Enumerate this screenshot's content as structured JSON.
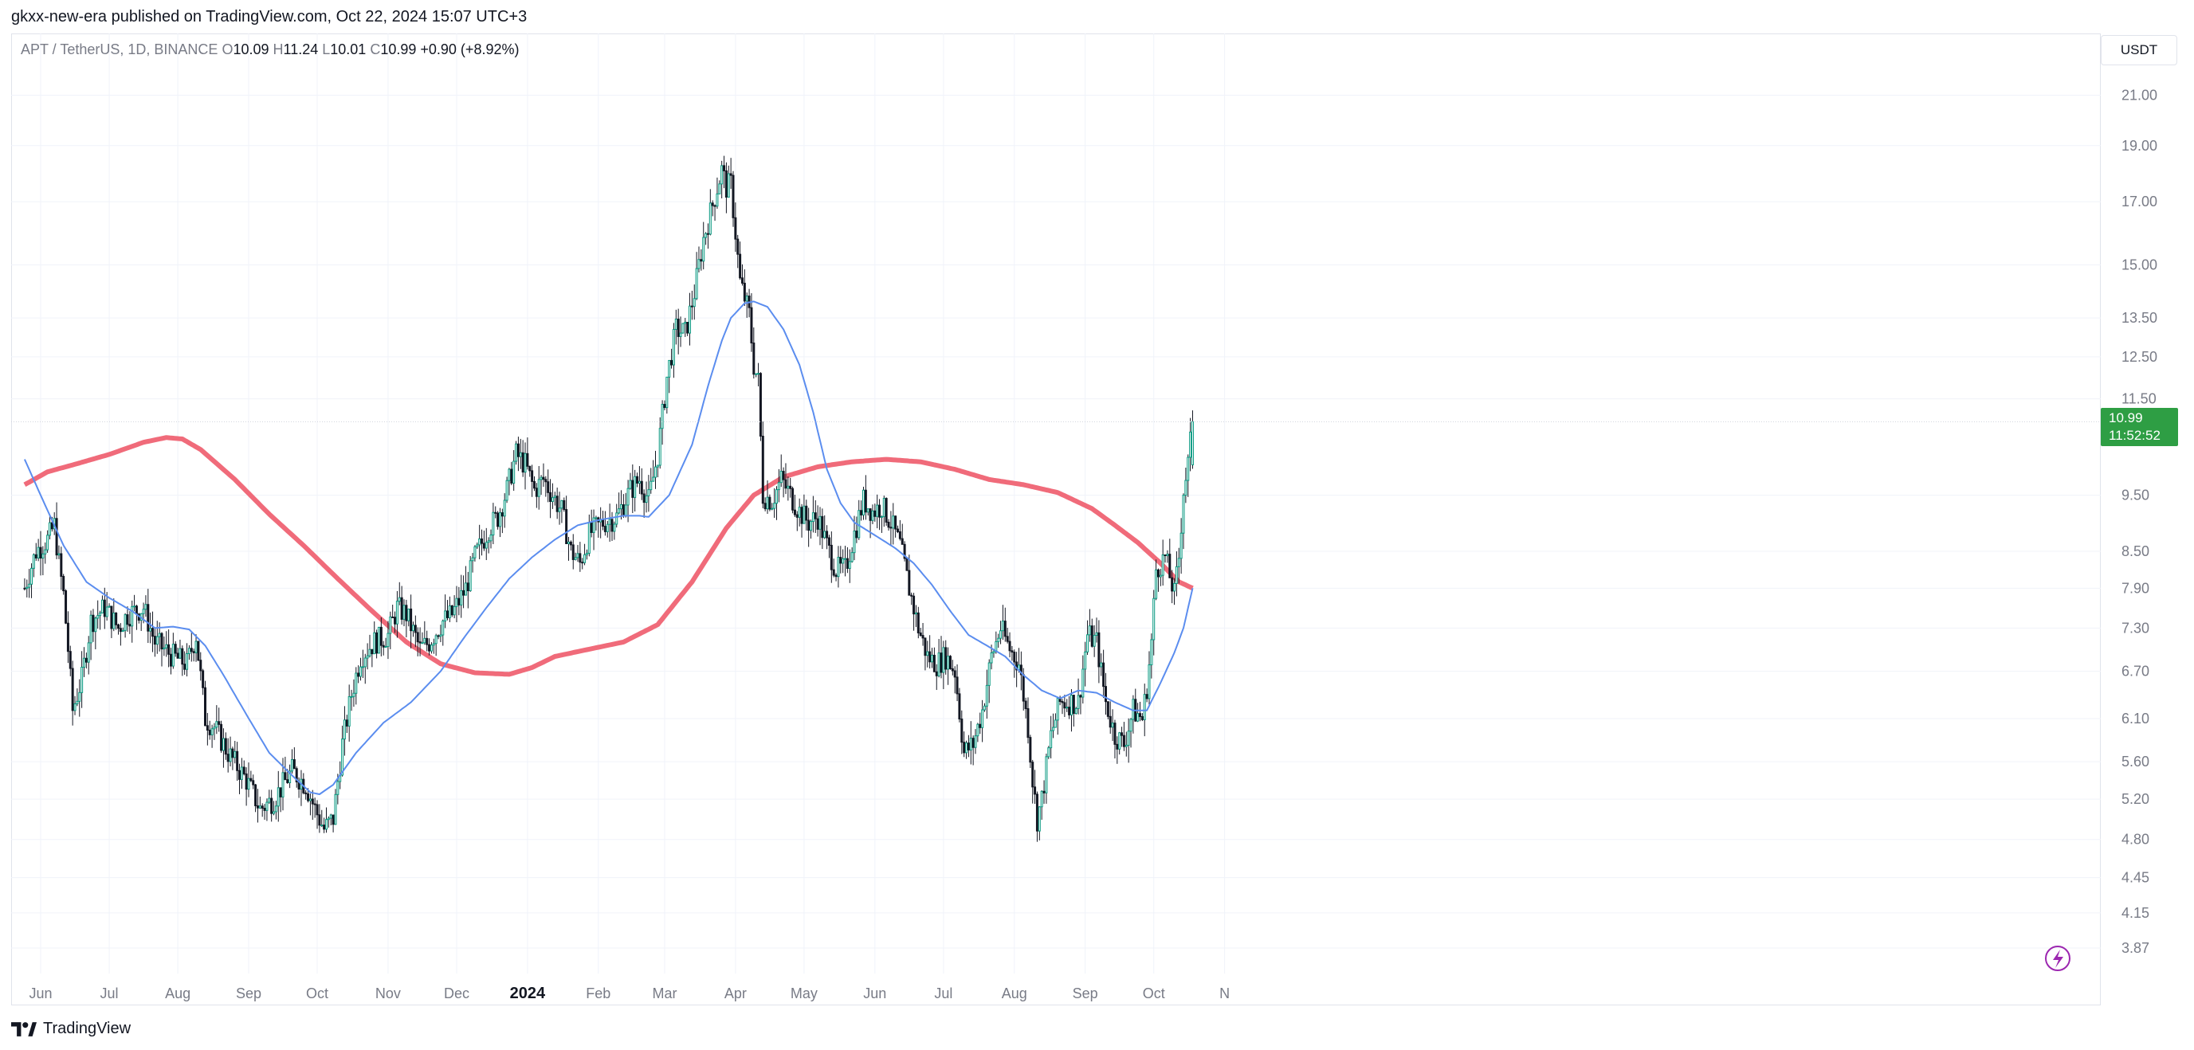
{
  "header": {
    "publisher_line": "gkxx-new-era published on TradingView.com, Oct 22, 2024 15:07 UTC+3"
  },
  "legend": {
    "symbol": "APT / TetherUS, 1D, BINANCE",
    "o_label": "O",
    "o_value": "10.09",
    "h_label": "H",
    "h_value": "11.24",
    "l_label": "L",
    "l_value": "10.01",
    "c_label": "C",
    "c_value": "10.99",
    "change": "+0.90 (+8.92%)"
  },
  "price_scale": {
    "currency": "USDT"
  },
  "last_price": {
    "price": "10.99",
    "countdown": "11:52:52"
  },
  "footer": {
    "brand": "TradingView"
  },
  "colors": {
    "up": "#089981",
    "down": "#131722",
    "candle": "#131722",
    "ma_long": "#f06b7a",
    "ma_short": "#5b8def",
    "price_tag": "#2e9e44"
  },
  "icons": {
    "footer_logo": "tradingview-logo-icon",
    "bolt": "lightning-bolt-icon"
  },
  "chart_data": {
    "type": "candlestick",
    "scale": "log",
    "grid": true,
    "ylim": [
      3.75,
      22.0
    ],
    "y_ticks": [
      "21.00",
      "19.00",
      "17.00",
      "15.00",
      "13.50",
      "12.50",
      "11.50",
      "9.50",
      "8.50",
      "7.90",
      "7.30",
      "6.70",
      "6.10",
      "5.60",
      "5.20",
      "4.80",
      "4.45",
      "4.15",
      "3.87"
    ],
    "x_ticks": [
      "Jun",
      "Jul",
      "Aug",
      "Sep",
      "Oct",
      "Nov",
      "Dec",
      "2024",
      "Feb",
      "Mar",
      "Apr",
      "May",
      "Jun",
      "Jul",
      "Aug",
      "Sep",
      "Oct",
      "N"
    ],
    "x_tick_index": [
      0,
      30,
      60,
      91,
      121,
      152,
      182,
      213,
      244,
      273,
      304,
      334,
      365,
      395,
      426,
      457,
      487,
      518
    ],
    "start_offset": -7,
    "last_index": 504,
    "price_anchors": [
      [
        -7,
        7.9
      ],
      [
        -2,
        8.5
      ],
      [
        3,
        8.7
      ],
      [
        6,
        8.95
      ],
      [
        8,
        8.3
      ],
      [
        10,
        7.8
      ],
      [
        12,
        7.0
      ],
      [
        14,
        6.2
      ],
      [
        18,
        6.6
      ],
      [
        22,
        7.4
      ],
      [
        28,
        7.6
      ],
      [
        34,
        7.3
      ],
      [
        38,
        7.5
      ],
      [
        45,
        7.6
      ],
      [
        50,
        7.1
      ],
      [
        58,
        6.9
      ],
      [
        64,
        6.8
      ],
      [
        68,
        7.2
      ],
      [
        72,
        6.1
      ],
      [
        76,
        6.0
      ],
      [
        82,
        5.7
      ],
      [
        90,
        5.4
      ],
      [
        96,
        5.1
      ],
      [
        102,
        5.2
      ],
      [
        110,
        5.5
      ],
      [
        116,
        5.35
      ],
      [
        120,
        5.1
      ],
      [
        124,
        4.9
      ],
      [
        128,
        5.0
      ],
      [
        132,
        5.8
      ],
      [
        136,
        6.4
      ],
      [
        140,
        6.9
      ],
      [
        146,
        7.1
      ],
      [
        152,
        7.2
      ],
      [
        156,
        7.6
      ],
      [
        160,
        7.5
      ],
      [
        166,
        7.0
      ],
      [
        170,
        7.1
      ],
      [
        176,
        7.4
      ],
      [
        180,
        7.5
      ],
      [
        186,
        7.9
      ],
      [
        190,
        8.4
      ],
      [
        196,
        8.9
      ],
      [
        200,
        9.1
      ],
      [
        204,
        9.6
      ],
      [
        208,
        10.3
      ],
      [
        212,
        10.1
      ],
      [
        216,
        9.6
      ],
      [
        220,
        9.8
      ],
      [
        224,
        9.5
      ],
      [
        228,
        9.2
      ],
      [
        232,
        8.5
      ],
      [
        236,
        8.3
      ],
      [
        240,
        8.8
      ],
      [
        246,
        9.0
      ],
      [
        252,
        9.1
      ],
      [
        258,
        9.6
      ],
      [
        262,
        9.8
      ],
      [
        266,
        9.4
      ],
      [
        270,
        10.3
      ],
      [
        274,
        12.0
      ],
      [
        278,
        13.2
      ],
      [
        282,
        13.1
      ],
      [
        286,
        14.2
      ],
      [
        290,
        15.8
      ],
      [
        294,
        16.9
      ],
      [
        298,
        18.1
      ],
      [
        300,
        17.5
      ],
      [
        302,
        17.6
      ],
      [
        306,
        14.5
      ],
      [
        310,
        13.6
      ],
      [
        312,
        12.3
      ],
      [
        314,
        11.9
      ],
      [
        316,
        9.5
      ],
      [
        320,
        9.4
      ],
      [
        324,
        9.8
      ],
      [
        328,
        9.5
      ],
      [
        332,
        9.2
      ],
      [
        336,
        9.0
      ],
      [
        340,
        9.1
      ],
      [
        344,
        8.6
      ],
      [
        348,
        8.2
      ],
      [
        352,
        8.2
      ],
      [
        356,
        8.8
      ],
      [
        360,
        9.4
      ],
      [
        364,
        9.2
      ],
      [
        368,
        9.3
      ],
      [
        372,
        9.0
      ],
      [
        376,
        8.6
      ],
      [
        380,
        7.9
      ],
      [
        384,
        7.3
      ],
      [
        388,
        6.9
      ],
      [
        392,
        6.8
      ],
      [
        396,
        6.9
      ],
      [
        400,
        6.7
      ],
      [
        404,
        5.7
      ],
      [
        408,
        5.8
      ],
      [
        412,
        6.2
      ],
      [
        416,
        6.9
      ],
      [
        420,
        7.3
      ],
      [
        424,
        7.0
      ],
      [
        428,
        6.8
      ],
      [
        432,
        6.0
      ],
      [
        434,
        5.4
      ],
      [
        436,
        5.0
      ],
      [
        438,
        5.2
      ],
      [
        442,
        5.9
      ],
      [
        446,
        6.3
      ],
      [
        450,
        6.3
      ],
      [
        454,
        6.3
      ],
      [
        458,
        7.2
      ],
      [
        462,
        7.1
      ],
      [
        466,
        6.3
      ],
      [
        470,
        5.9
      ],
      [
        474,
        5.8
      ],
      [
        478,
        6.2
      ],
      [
        482,
        6.1
      ],
      [
        484,
        6.5
      ],
      [
        486,
        7.1
      ],
      [
        488,
        8.2
      ],
      [
        492,
        8.4
      ],
      [
        496,
        7.8
      ],
      [
        498,
        8.4
      ],
      [
        500,
        9.6
      ],
      [
        502,
        10.1
      ],
      [
        504,
        10.99
      ]
    ],
    "ma_long": [
      [
        -7,
        9.7
      ],
      [
        3,
        9.95
      ],
      [
        15,
        10.1
      ],
      [
        30,
        10.3
      ],
      [
        45,
        10.55
      ],
      [
        55,
        10.65
      ],
      [
        62,
        10.62
      ],
      [
        70,
        10.4
      ],
      [
        85,
        9.8
      ],
      [
        100,
        9.15
      ],
      [
        115,
        8.6
      ],
      [
        130,
        8.05
      ],
      [
        145,
        7.55
      ],
      [
        160,
        7.1
      ],
      [
        175,
        6.8
      ],
      [
        190,
        6.68
      ],
      [
        205,
        6.66
      ],
      [
        215,
        6.75
      ],
      [
        225,
        6.9
      ],
      [
        240,
        7.0
      ],
      [
        255,
        7.1
      ],
      [
        270,
        7.35
      ],
      [
        285,
        8.0
      ],
      [
        300,
        8.9
      ],
      [
        312,
        9.5
      ],
      [
        325,
        9.85
      ],
      [
        340,
        10.05
      ],
      [
        355,
        10.15
      ],
      [
        370,
        10.2
      ],
      [
        385,
        10.15
      ],
      [
        400,
        10.0
      ],
      [
        415,
        9.8
      ],
      [
        430,
        9.7
      ],
      [
        445,
        9.55
      ],
      [
        460,
        9.25
      ],
      [
        470,
        8.95
      ],
      [
        480,
        8.65
      ],
      [
        490,
        8.3
      ],
      [
        498,
        8.0
      ],
      [
        504,
        7.9
      ]
    ],
    "ma_short": [
      [
        -7,
        10.2
      ],
      [
        0,
        9.5
      ],
      [
        10,
        8.6
      ],
      [
        20,
        8.0
      ],
      [
        30,
        7.75
      ],
      [
        40,
        7.55
      ],
      [
        50,
        7.3
      ],
      [
        58,
        7.32
      ],
      [
        65,
        7.28
      ],
      [
        72,
        7.05
      ],
      [
        80,
        6.65
      ],
      [
        90,
        6.15
      ],
      [
        100,
        5.7
      ],
      [
        110,
        5.45
      ],
      [
        118,
        5.27
      ],
      [
        122,
        5.25
      ],
      [
        128,
        5.35
      ],
      [
        138,
        5.7
      ],
      [
        150,
        6.05
      ],
      [
        162,
        6.3
      ],
      [
        175,
        6.7
      ],
      [
        185,
        7.15
      ],
      [
        195,
        7.6
      ],
      [
        205,
        8.05
      ],
      [
        215,
        8.4
      ],
      [
        225,
        8.7
      ],
      [
        235,
        8.95
      ],
      [
        245,
        9.05
      ],
      [
        255,
        9.12
      ],
      [
        262,
        9.12
      ],
      [
        266,
        9.1
      ],
      [
        275,
        9.5
      ],
      [
        285,
        10.5
      ],
      [
        292,
        11.8
      ],
      [
        298,
        12.9
      ],
      [
        302,
        13.5
      ],
      [
        308,
        13.9
      ],
      [
        312,
        13.95
      ],
      [
        318,
        13.8
      ],
      [
        325,
        13.2
      ],
      [
        332,
        12.3
      ],
      [
        338,
        11.2
      ],
      [
        344,
        10.0
      ],
      [
        350,
        9.35
      ],
      [
        356,
        9.0
      ],
      [
        362,
        8.85
      ],
      [
        368,
        8.7
      ],
      [
        374,
        8.55
      ],
      [
        382,
        8.3
      ],
      [
        390,
        7.95
      ],
      [
        398,
        7.55
      ],
      [
        406,
        7.2
      ],
      [
        414,
        7.05
      ],
      [
        422,
        6.9
      ],
      [
        430,
        6.65
      ],
      [
        438,
        6.45
      ],
      [
        446,
        6.35
      ],
      [
        454,
        6.45
      ],
      [
        462,
        6.42
      ],
      [
        470,
        6.3
      ],
      [
        478,
        6.2
      ],
      [
        484,
        6.2
      ],
      [
        490,
        6.55
      ],
      [
        496,
        6.95
      ],
      [
        500,
        7.3
      ],
      [
        504,
        7.9
      ]
    ]
  }
}
